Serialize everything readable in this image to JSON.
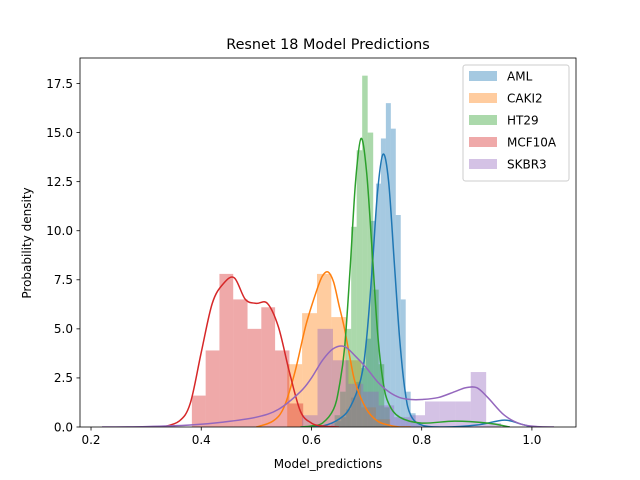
{
  "chart_data": {
    "type": "histogram",
    "title": "Resnet 18 Model Predictions",
    "xlabel": "Model_predictions",
    "ylabel": "Probability density",
    "xlim": [
      0.18,
      1.08
    ],
    "ylim": [
      0,
      18.8
    ],
    "xticks": [
      0.2,
      0.4,
      0.6,
      0.8,
      1.0
    ],
    "xtick_labels": [
      "0.2",
      "0.4",
      "0.6",
      "0.8",
      "1.0"
    ],
    "yticks": [
      0,
      2.5,
      5,
      7.5,
      10,
      12.5,
      15,
      17.5
    ],
    "ytick_labels": [
      "0.0",
      "2.5",
      "5.0",
      "7.5",
      "10.0",
      "12.5",
      "15.0",
      "17.5"
    ],
    "legend_position": "upper right",
    "grid": false,
    "series": [
      {
        "name": "AML",
        "color": "#1f77b4",
        "bins": [
          [
            0.636,
            0.645,
            0.2
          ],
          [
            0.645,
            0.654,
            0.3
          ],
          [
            0.654,
            0.663,
            0.5
          ],
          [
            0.663,
            0.672,
            0.9
          ],
          [
            0.672,
            0.681,
            1.5
          ],
          [
            0.681,
            0.69,
            2.3
          ],
          [
            0.69,
            0.699,
            3.0
          ],
          [
            0.699,
            0.708,
            4.5
          ],
          [
            0.708,
            0.717,
            10.5
          ],
          [
            0.717,
            0.726,
            12.4
          ],
          [
            0.726,
            0.735,
            14.7
          ],
          [
            0.735,
            0.744,
            16.5
          ],
          [
            0.744,
            0.753,
            15.2
          ],
          [
            0.753,
            0.762,
            10.8
          ],
          [
            0.762,
            0.771,
            6.5
          ],
          [
            0.771,
            0.78,
            1.8
          ],
          [
            0.78,
            0.789,
            0.7
          ],
          [
            0.789,
            0.798,
            0.2
          ]
        ],
        "kde_x": [
          0.58,
          0.62,
          0.65,
          0.67,
          0.69,
          0.7,
          0.71,
          0.72,
          0.73,
          0.74,
          0.75,
          0.76,
          0.77,
          0.78,
          0.8,
          0.84,
          0.9,
          0.95,
          0.98,
          1.0
        ],
        "kde_y": [
          0.0,
          0.05,
          0.4,
          1.0,
          2.5,
          4.5,
          8.0,
          12.0,
          13.9,
          12.5,
          8.5,
          4.5,
          1.8,
          0.6,
          0.1,
          0.0,
          0.1,
          0.35,
          0.15,
          0.0
        ]
      },
      {
        "name": "CAKI2",
        "color": "#ff7f0e",
        "bins": [
          [
            0.556,
            0.583,
            3.2
          ],
          [
            0.583,
            0.61,
            5.8
          ],
          [
            0.61,
            0.636,
            7.8
          ],
          [
            0.636,
            0.663,
            5.6
          ],
          [
            0.663,
            0.69,
            3.4
          ],
          [
            0.69,
            0.717,
            1.0
          ],
          [
            0.717,
            0.743,
            0.4
          ]
        ],
        "kde_x": [
          0.5,
          0.53,
          0.55,
          0.57,
          0.59,
          0.61,
          0.62,
          0.63,
          0.64,
          0.65,
          0.66,
          0.67,
          0.68,
          0.7,
          0.72,
          0.74,
          0.76,
          0.78
        ],
        "kde_y": [
          0.0,
          0.3,
          1.0,
          2.8,
          5.2,
          7.0,
          7.7,
          7.9,
          7.4,
          6.2,
          5.0,
          3.5,
          2.2,
          0.9,
          0.3,
          0.1,
          0.0,
          0.0
        ]
      },
      {
        "name": "HT29",
        "color": "#2ca02c",
        "bins": [
          [
            0.642,
            0.652,
            0.6
          ],
          [
            0.652,
            0.662,
            1.8
          ],
          [
            0.662,
            0.672,
            5.0
          ],
          [
            0.672,
            0.682,
            10.2
          ],
          [
            0.682,
            0.692,
            14.1
          ],
          [
            0.692,
            0.702,
            17.9
          ],
          [
            0.702,
            0.712,
            15.0
          ],
          [
            0.712,
            0.722,
            7.0
          ],
          [
            0.722,
            0.732,
            3.2
          ],
          [
            0.732,
            0.742,
            1.0
          ]
        ],
        "kde_x": [
          0.58,
          0.6,
          0.62,
          0.64,
          0.65,
          0.66,
          0.67,
          0.68,
          0.69,
          0.7,
          0.71,
          0.72,
          0.73,
          0.74,
          0.76,
          0.8,
          0.86,
          0.92,
          0.96
        ],
        "kde_y": [
          0.0,
          0.05,
          0.2,
          0.9,
          2.0,
          4.0,
          8.0,
          12.5,
          14.7,
          13.0,
          9.0,
          4.8,
          2.3,
          1.2,
          0.5,
          0.2,
          0.3,
          0.2,
          0.0
        ]
      },
      {
        "name": "MCF10A",
        "color": "#d62728",
        "bins": [
          [
            0.383,
            0.408,
            1.6
          ],
          [
            0.408,
            0.433,
            3.9
          ],
          [
            0.433,
            0.458,
            7.8
          ],
          [
            0.458,
            0.484,
            6.5
          ],
          [
            0.484,
            0.509,
            5.0
          ],
          [
            0.509,
            0.534,
            6.1
          ],
          [
            0.534,
            0.56,
            3.9
          ],
          [
            0.56,
            0.585,
            1.2
          ]
        ],
        "kde_x": [
          0.33,
          0.36,
          0.38,
          0.4,
          0.42,
          0.44,
          0.46,
          0.48,
          0.5,
          0.52,
          0.54,
          0.56,
          0.58,
          0.6,
          0.62,
          0.65
        ],
        "kde_y": [
          0.0,
          0.3,
          1.2,
          3.8,
          6.3,
          7.3,
          7.6,
          6.5,
          6.3,
          6.3,
          5.1,
          2.8,
          0.8,
          0.2,
          0.05,
          0.0
        ]
      },
      {
        "name": "SKBR3",
        "color": "#9467bd",
        "bins": [
          [
            0.583,
            0.611,
            0.6
          ],
          [
            0.611,
            0.639,
            5.0
          ],
          [
            0.639,
            0.667,
            3.4
          ],
          [
            0.667,
            0.694,
            2.2
          ],
          [
            0.694,
            0.722,
            1.8
          ],
          [
            0.722,
            0.75,
            1.1
          ],
          [
            0.75,
            0.778,
            0.5
          ],
          [
            0.778,
            0.806,
            0.6
          ],
          [
            0.806,
            0.833,
            1.3
          ],
          [
            0.833,
            0.861,
            1.3
          ],
          [
            0.861,
            0.889,
            1.3
          ],
          [
            0.889,
            0.917,
            2.8
          ],
          [
            0.917,
            0.944,
            0.2
          ]
        ],
        "kde_x": [
          0.22,
          0.3,
          0.38,
          0.44,
          0.5,
          0.54,
          0.58,
          0.6,
          0.62,
          0.64,
          0.66,
          0.68,
          0.7,
          0.72,
          0.74,
          0.76,
          0.78,
          0.8,
          0.83,
          0.86,
          0.88,
          0.9,
          0.92,
          0.95,
          0.98,
          1.01,
          1.04
        ],
        "kde_y": [
          0.0,
          0.02,
          0.1,
          0.25,
          0.5,
          0.9,
          1.8,
          2.5,
          3.4,
          4.0,
          4.1,
          3.6,
          3.0,
          2.3,
          1.8,
          1.5,
          1.4,
          1.4,
          1.5,
          1.8,
          2.0,
          2.0,
          1.5,
          0.6,
          0.15,
          0.02,
          0.0
        ]
      }
    ]
  }
}
